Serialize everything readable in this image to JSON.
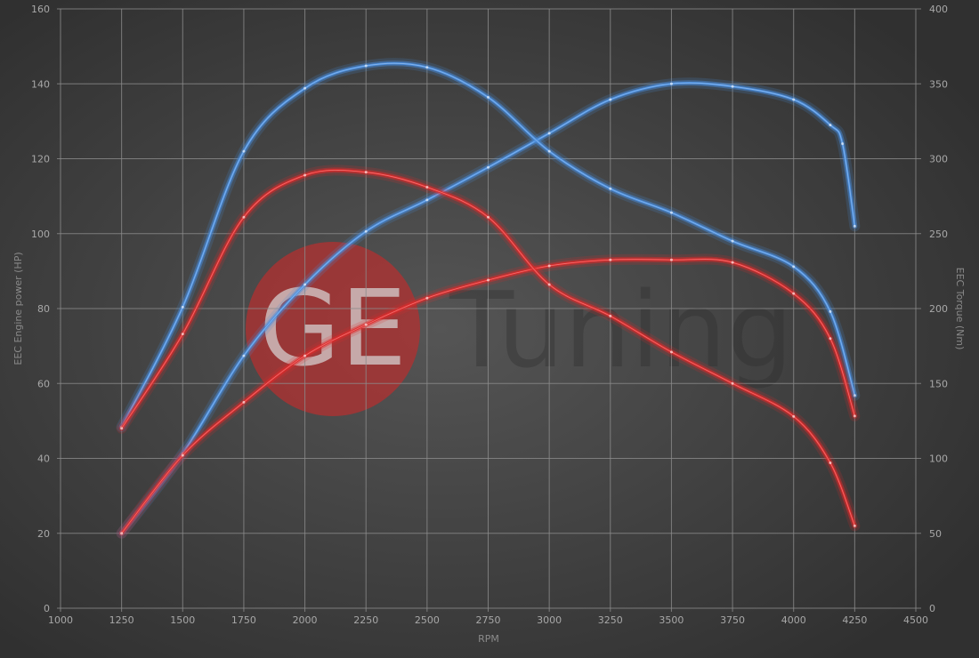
{
  "chart_data": {
    "type": "line",
    "title": "",
    "xlabel": "RPM",
    "ylabel_left": "EEC Engine power (HP)",
    "ylabel_right": "EEC Torque (Nm)",
    "xlim": [
      1000,
      4500
    ],
    "ylim_left": [
      0,
      160
    ],
    "ylim_right": [
      0,
      400
    ],
    "x_ticks": [
      1000,
      1250,
      1500,
      1750,
      2000,
      2250,
      2500,
      2750,
      3000,
      3250,
      3500,
      3750,
      4000,
      4250,
      4500
    ],
    "y_ticks_left": [
      0,
      20,
      40,
      60,
      80,
      100,
      120,
      140,
      160
    ],
    "y_ticks_right": [
      0,
      50,
      100,
      150,
      200,
      250,
      300,
      350,
      400
    ],
    "grid": true,
    "legend": "none",
    "background_color": "#3a3a3a",
    "grid_color": "#8c8c8c",
    "series": [
      {
        "axis": "left",
        "unit": "HP",
        "color": "#4a8fe0",
        "x": [
          1250,
          1500,
          1750,
          2000,
          2250,
          2500,
          2750,
          3000,
          3250,
          3500,
          3750,
          4000,
          4150,
          4200,
          4250
        ],
        "y": [
          20,
          41.3,
          67.4,
          86.4,
          100.6,
          109,
          117.7,
          126.8,
          135.8,
          140,
          139.3,
          135.8,
          129,
          124,
          102
        ]
      },
      {
        "axis": "right",
        "unit": "Nm",
        "color": "#4a8fe0",
        "x": [
          1250,
          1500,
          1750,
          2000,
          2250,
          2500,
          2750,
          3000,
          3250,
          3500,
          3750,
          4000,
          4150,
          4250
        ],
        "y": [
          121,
          201,
          305,
          347,
          362,
          361,
          341,
          305,
          280,
          264,
          245,
          228,
          198,
          142
        ]
      },
      {
        "axis": "left",
        "unit": "HP",
        "color": "#e02a2a",
        "x": [
          1250,
          1500,
          1750,
          2000,
          2250,
          2500,
          2750,
          3000,
          3250,
          3500,
          3750,
          4000,
          4150,
          4250
        ],
        "y": [
          20,
          40.8,
          55,
          67.4,
          75.7,
          82.8,
          87.6,
          91.4,
          93,
          93,
          92.3,
          84,
          72,
          51.3
        ]
      },
      {
        "axis": "right",
        "unit": "Nm",
        "color": "#e02a2a",
        "x": [
          1250,
          1500,
          1750,
          2000,
          2250,
          2500,
          2750,
          3000,
          3250,
          3500,
          3750,
          4000,
          4150,
          4250
        ],
        "y": [
          120,
          183,
          261,
          289,
          291,
          281,
          261,
          216,
          195,
          171,
          150,
          128,
          97,
          55
        ]
      }
    ]
  },
  "watermark": {
    "logo_text": "GE",
    "brand_text": "Tuning"
  }
}
